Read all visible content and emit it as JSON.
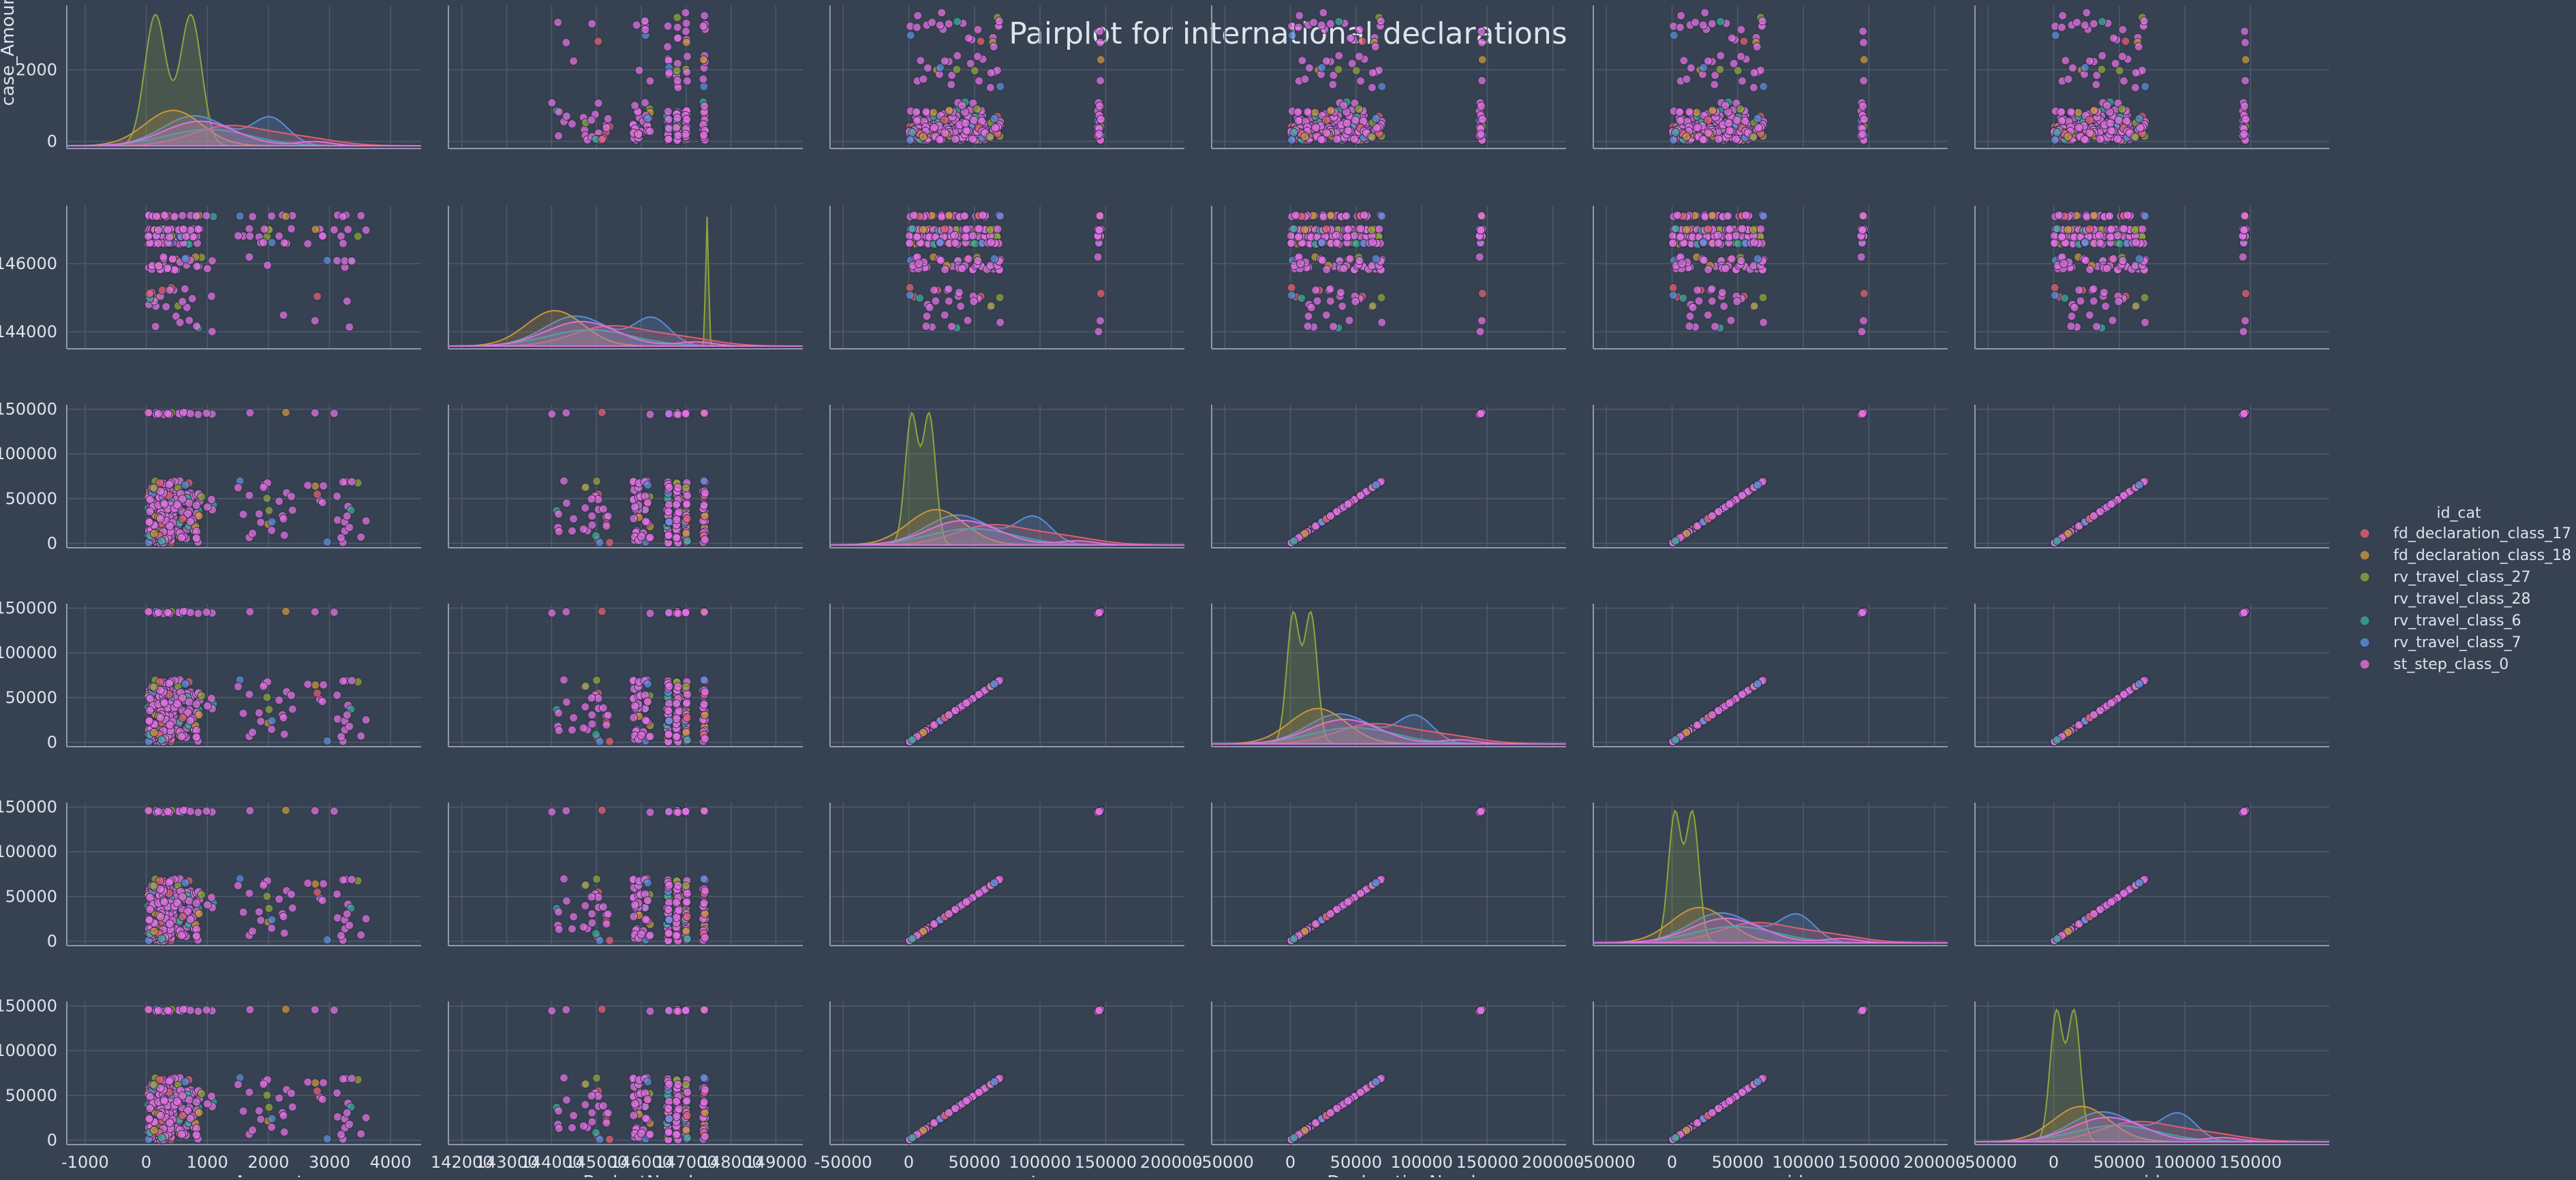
{
  "chart_data": {
    "type": "pairplot",
    "title": "Pairplot for international declarations",
    "variables": [
      "case_Amount",
      "case_BudgetNumber",
      "case_concept_name",
      "case_DeclarationNumber",
      "case_id",
      "id"
    ],
    "ticks": {
      "case_Amount": [
        -1000,
        0,
        1000,
        2000,
        3000,
        4000
      ],
      "case_BudgetNumber": [
        142000,
        143000,
        144000,
        145000,
        146000,
        147000,
        148000,
        149000
      ],
      "case_concept_name": [
        -50000,
        0,
        50000,
        100000,
        150000,
        200000
      ],
      "case_DeclarationNumber": [
        -50000,
        0,
        50000,
        100000,
        150000,
        200000
      ],
      "case_id": [
        -50000,
        0,
        50000,
        100000,
        150000,
        200000
      ],
      "id": [
        -50000,
        0,
        50000,
        100000,
        150000
      ]
    },
    "y_ticks": {
      "case_Amount": [
        0,
        2000
      ],
      "case_BudgetNumber": [
        144000,
        146000
      ],
      "case_concept_name": [
        0,
        50000,
        100000,
        150000
      ],
      "case_DeclarationNumber": [
        0,
        50000,
        100000,
        150000
      ],
      "case_id": [
        0,
        50000,
        100000,
        150000
      ],
      "id": [
        0,
        50000,
        100000,
        150000
      ]
    },
    "ranges": {
      "case_Amount": [
        -1300,
        4500
      ],
      "case_BudgetNumber": [
        141700,
        149600
      ],
      "case_concept_name": [
        -60000,
        210000
      ],
      "case_DeclarationNumber": [
        -60000,
        210000
      ],
      "case_id": [
        -60000,
        210000
      ],
      "id": [
        -60000,
        210000
      ]
    },
    "y_ranges": {
      "case_Amount": [
        -200,
        3800
      ],
      "case_BudgetNumber": [
        143500,
        147700
      ],
      "case_concept_name": [
        -5000,
        155000
      ],
      "case_DeclarationNumber": [
        -5000,
        155000
      ],
      "case_id": [
        -5000,
        155000
      ],
      "id": [
        -5000,
        155000
      ]
    },
    "hue": {
      "title": "id_cat",
      "categories": [
        "fd_declaration_class_17",
        "fd_declaration_class_18",
        "rv_travel_class_27",
        "rv_travel_class_28",
        "rv_travel_class_6",
        "rv_travel_class_7",
        "st_step_class_0"
      ],
      "colors": [
        "#e06070",
        "#c8963c",
        "#8fa43c",
        "#3c4a5c",
        "#3aa99a",
        "#5a8ed8",
        "#e070e0"
      ]
    },
    "grid": true,
    "legend_position": "right",
    "style": {
      "background": "#364152",
      "grid_color": "#4f5b6c",
      "spine_color": "#8e9aab",
      "text_color": "#dfe3ea"
    }
  }
}
